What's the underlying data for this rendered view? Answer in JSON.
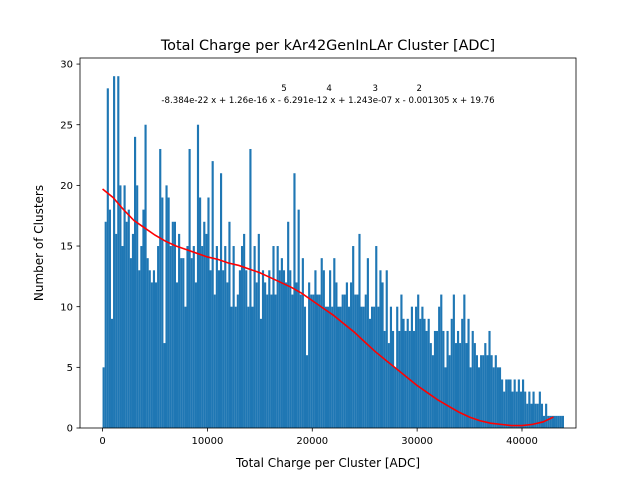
{
  "chart_data": {
    "type": "bar",
    "title": "Total Charge per kAr42GenInLAr Cluster [ADC]",
    "xlabel": "Total Charge per Cluster [ADC]",
    "ylabel": "Number of Clusters",
    "xlim": [
      -2150,
      45150
    ],
    "ylim": [
      0,
      30.5
    ],
    "xticks": [
      0,
      10000,
      20000,
      30000,
      40000
    ],
    "xtick_labels": [
      "0",
      "10000",
      "20000",
      "30000",
      "40000"
    ],
    "yticks": [
      0,
      5,
      10,
      15,
      20,
      25,
      30
    ],
    "ytick_labels": [
      "0",
      "5",
      "10",
      "15",
      "20",
      "25",
      "30"
    ],
    "grid": false,
    "bin_start": 0,
    "bin_width": 200,
    "counts": [
      5,
      17,
      28,
      18,
      9,
      29,
      16,
      29,
      20,
      15,
      20,
      17,
      18,
      14,
      16,
      24,
      20,
      13,
      15,
      18,
      25,
      14,
      13,
      12,
      13,
      12,
      15,
      23,
      19,
      7,
      20,
      19,
      15,
      17,
      17,
      12,
      16,
      14,
      14,
      10,
      15,
      23,
      14,
      15,
      12,
      25,
      19,
      15,
      17,
      16,
      19,
      13,
      22,
      11,
      15,
      13,
      21,
      13,
      15,
      12,
      17,
      10,
      15,
      10,
      11,
      13,
      15,
      16,
      13,
      10,
      23,
      10,
      15,
      12,
      16,
      9,
      13,
      12,
      11,
      13,
      11,
      15,
      11,
      15,
      13,
      14,
      13,
      12,
      17,
      13,
      11,
      21,
      12,
      18,
      11,
      14,
      10,
      6,
      12,
      11,
      11,
      13,
      11,
      11,
      14,
      13,
      10,
      10,
      13,
      10,
      14,
      12,
      10,
      10,
      11,
      11,
      12,
      10,
      12,
      15,
      11,
      11,
      16,
      10,
      10,
      11,
      14,
      9,
      10,
      10,
      15,
      10,
      13,
      12,
      8,
      13,
      7,
      10,
      8,
      5,
      10,
      8,
      11,
      9,
      8,
      9,
      8,
      10,
      8,
      10,
      11,
      9,
      10,
      9,
      8,
      9,
      7,
      6,
      8,
      8,
      10,
      11,
      8,
      5,
      8,
      6,
      9,
      11,
      7,
      8,
      7,
      9,
      11,
      7,
      9,
      5,
      8,
      7,
      6,
      5,
      6,
      6,
      7,
      6,
      8,
      6,
      5,
      6,
      5,
      5,
      4,
      3,
      4,
      4,
      4,
      3,
      4,
      3,
      4,
      3,
      4,
      3,
      2,
      3,
      2,
      3,
      2,
      2,
      3,
      2,
      1,
      2,
      1,
      1,
      1,
      1,
      1,
      1,
      1,
      1
    ],
    "fit": {
      "type": "line",
      "color": "#ff0000",
      "annotation_exponents": [
        "5",
        "4",
        "3",
        "2"
      ],
      "annotation_text": "-8.384e-22 x + 1.26e-16 x - 6.291e-12 x + 1.243e-07 x - 0.001305 x + 19.76",
      "x": [
        0,
        1000,
        2000,
        3000,
        4000,
        5000,
        6000,
        7000,
        8000,
        9000,
        10000,
        11000,
        12000,
        13000,
        14000,
        15000,
        16000,
        17000,
        18000,
        19000,
        20000,
        21000,
        22000,
        23000,
        24000,
        25000,
        26000,
        27000,
        28000,
        29000,
        30000,
        31000,
        32000,
        33000,
        34000,
        35000,
        36000,
        37000,
        38000,
        39000,
        40000,
        41000,
        42000,
        43000
      ],
      "y": [
        19.7,
        19.0,
        18.0,
        17.1,
        16.5,
        15.9,
        15.4,
        15.0,
        14.7,
        14.4,
        14.1,
        13.9,
        13.6,
        13.4,
        13.1,
        12.8,
        12.4,
        12.0,
        11.6,
        11.1,
        10.5,
        9.9,
        9.3,
        8.6,
        7.9,
        7.1,
        6.3,
        5.6,
        4.9,
        4.2,
        3.5,
        2.9,
        2.3,
        1.8,
        1.3,
        0.9,
        0.6,
        0.4,
        0.3,
        0.2,
        0.2,
        0.3,
        0.5,
        0.9
      ]
    },
    "colors": {
      "bars": "#1f77b4",
      "fit": "#ff0000"
    }
  }
}
